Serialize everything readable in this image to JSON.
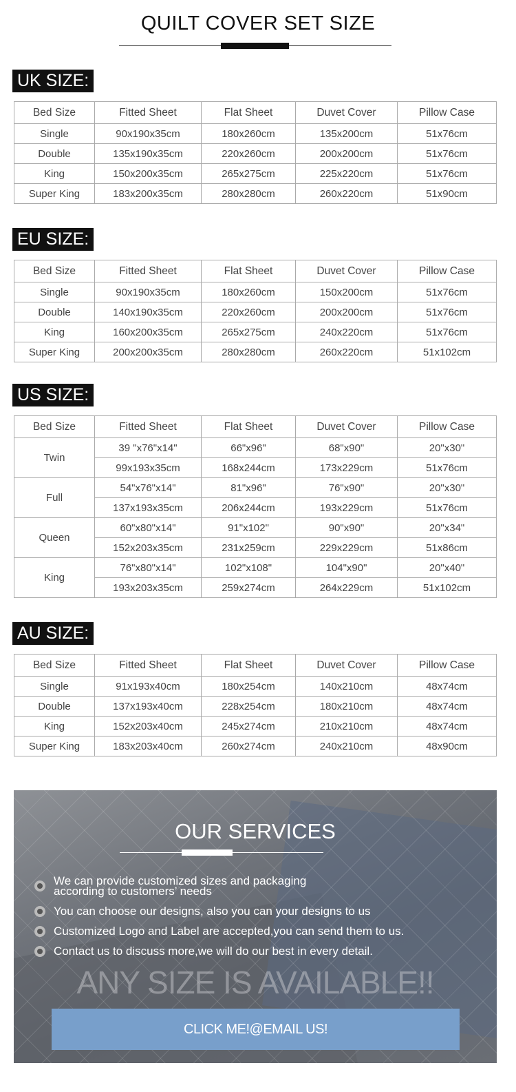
{
  "title": "QUILT COVER SET SIZE",
  "headers": [
    "Bed Size",
    "Fitted Sheet",
    "Flat Sheet",
    "Duvet Cover",
    "Pillow Case"
  ],
  "uk": {
    "label": "UK SIZE:",
    "rows": [
      [
        "Single",
        "90x190x35cm",
        "180x260cm",
        "135x200cm",
        "51x76cm"
      ],
      [
        "Double",
        "135x190x35cm",
        "220x260cm",
        "200x200cm",
        "51x76cm"
      ],
      [
        "King",
        "150x200x35cm",
        "265x275cm",
        "225x220cm",
        "51x76cm"
      ],
      [
        "Super King",
        "183x200x35cm",
        "280x280cm",
        "260x220cm",
        "51x90cm"
      ]
    ]
  },
  "eu": {
    "label": "EU SIZE:",
    "rows": [
      [
        "Single",
        "90x190x35cm",
        "180x260cm",
        "150x200cm",
        "51x76cm"
      ],
      [
        "Double",
        "140x190x35cm",
        "220x260cm",
        "200x200cm",
        "51x76cm"
      ],
      [
        "King",
        "160x200x35cm",
        "265x275cm",
        "240x220cm",
        "51x76cm"
      ],
      [
        "Super King",
        "200x200x35cm",
        "280x280cm",
        "260x220cm",
        "51x102cm"
      ]
    ]
  },
  "us": {
    "label": "US SIZE:",
    "groups": [
      {
        "bed": "Twin",
        "rows": [
          [
            "39 \"x76\"x14\"",
            "66\"x96\"",
            "68\"x90\"",
            "20\"x30\""
          ],
          [
            "99x193x35cm",
            "168x244cm",
            "173x229cm",
            "51x76cm"
          ]
        ]
      },
      {
        "bed": "Full",
        "rows": [
          [
            "54\"x76\"x14\"",
            "81\"x96\"",
            "76\"x90\"",
            "20\"x30\""
          ],
          [
            "137x193x35cm",
            "206x244cm",
            "193x229cm",
            "51x76cm"
          ]
        ]
      },
      {
        "bed": "Queen",
        "rows": [
          [
            "60\"x80\"x14\"",
            "91\"x102\"",
            "90\"x90\"",
            "20\"x34\""
          ],
          [
            "152x203x35cm",
            "231x259cm",
            "229x229cm",
            "51x86cm"
          ]
        ]
      },
      {
        "bed": "King",
        "rows": [
          [
            "76\"x80\"x14\"",
            "102\"x108\"",
            "104\"x90\"",
            "20\"x40\""
          ],
          [
            "193x203x35cm",
            "259x274cm",
            "264x229cm",
            "51x102cm"
          ]
        ]
      }
    ]
  },
  "au": {
    "label": "AU SIZE:",
    "rows": [
      [
        "Single",
        "91x193x40cm",
        "180x254cm",
        "140x210cm",
        "48x74cm"
      ],
      [
        "Double",
        "137x193x40cm",
        "228x254cm",
        "180x210cm",
        "48x74cm"
      ],
      [
        "King",
        "152x203x40cm",
        "245x274cm",
        "210x210cm",
        "48x74cm"
      ],
      [
        "Super King",
        "183x203x40cm",
        "260x274cm",
        "240x210cm",
        "48x90cm"
      ]
    ]
  },
  "services": {
    "title": "OUR SERVICES",
    "items": [
      "We can provide customized sizes and packaging according to customers’ needs",
      "You can choose our designs, also you can your designs to us",
      "Customized Logo and Label are accepted,you can send them to us.",
      "Contact us to discuss more,we will do our best in every detail."
    ],
    "item0_line1": "We can provide customized sizes and packaging",
    "item0_line2": "according to customers’ needs",
    "banner": "ANY SIZE IS AVAILABLE!!",
    "button": "CLICK ME!@EMAIL US!",
    "button_color": "#789fcb"
  }
}
